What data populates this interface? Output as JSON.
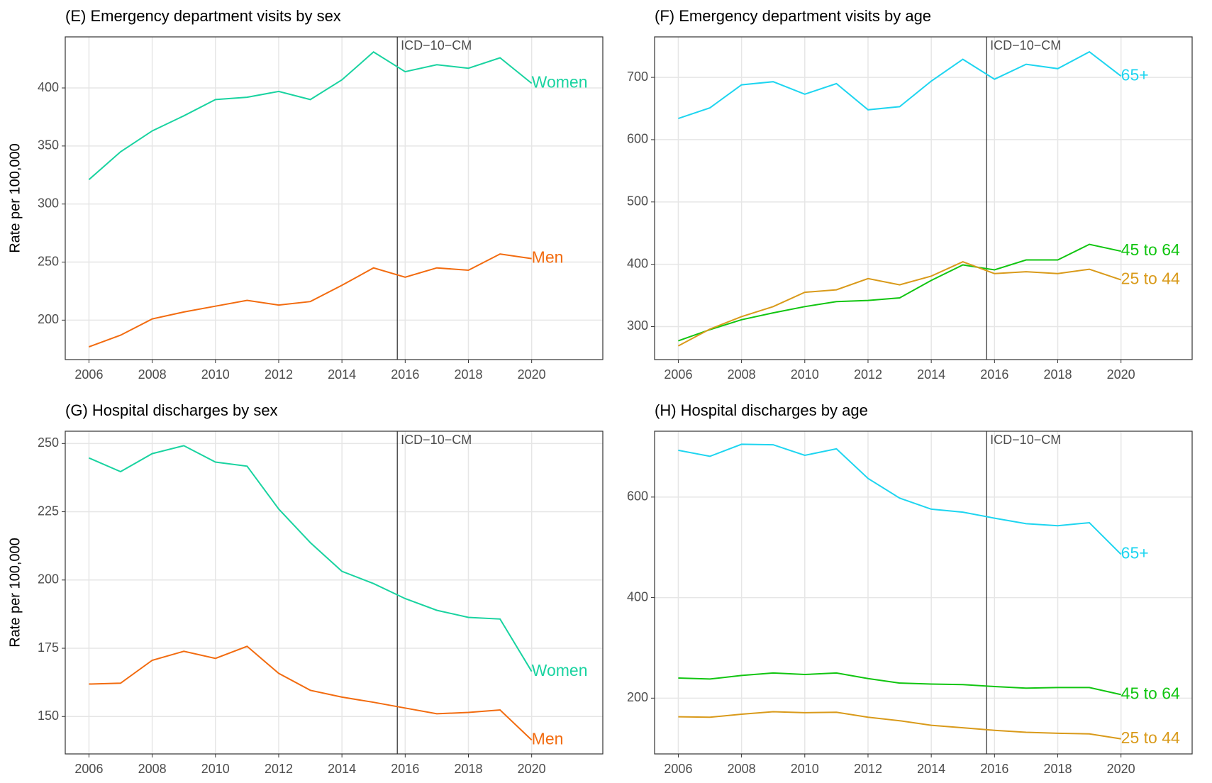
{
  "chart_data": [
    {
      "type": "line",
      "title": "(E) Emergency department visits by sex",
      "y_label": "Rate per 100,000",
      "x": [
        2006,
        2007,
        2008,
        2009,
        2010,
        2011,
        2012,
        2013,
        2014,
        2015,
        2016,
        2017,
        2018,
        2019,
        2020
      ],
      "xlim": [
        2005.25,
        2022.25
      ],
      "xticks": [
        2006,
        2008,
        2010,
        2012,
        2014,
        2016,
        2018,
        2020
      ],
      "ylim": [
        166,
        444
      ],
      "yticks": [
        200,
        250,
        300,
        350,
        400
      ],
      "grid": true,
      "vline": {
        "x": 2015.75,
        "label": "ICD−10−CM"
      },
      "series": [
        {
          "name": "Women",
          "color": "#19d3a0",
          "values": [
            321,
            345,
            363,
            376,
            390,
            392,
            397,
            390,
            407,
            431,
            414,
            420,
            417,
            426,
            404
          ]
        },
        {
          "name": "Men",
          "color": "#f26b0f",
          "values": [
            177,
            187,
            201,
            207,
            212,
            217,
            213,
            216,
            230,
            245,
            237,
            245,
            243,
            257,
            253
          ]
        }
      ]
    },
    {
      "type": "line",
      "title": "(F) Emergency department visits by age",
      "x": [
        2006,
        2007,
        2008,
        2009,
        2010,
        2011,
        2012,
        2013,
        2014,
        2015,
        2016,
        2017,
        2018,
        2019,
        2020
      ],
      "xlim": [
        2005.25,
        2022.25
      ],
      "xticks": [
        2006,
        2008,
        2010,
        2012,
        2014,
        2016,
        2018,
        2020
      ],
      "ylim": [
        247,
        765
      ],
      "yticks": [
        300,
        400,
        500,
        600,
        700
      ],
      "grid": true,
      "vline": {
        "x": 2015.75,
        "label": "ICD−10−CM"
      },
      "series": [
        {
          "name": "65+",
          "color": "#1ed5f0",
          "values": [
            634,
            651,
            688,
            693,
            673,
            690,
            648,
            653,
            694,
            729,
            697,
            721,
            714,
            741,
            702
          ]
        },
        {
          "name": "45 to 64",
          "color": "#11c511",
          "values": [
            277,
            295,
            311,
            322,
            332,
            340,
            342,
            346,
            374,
            399,
            391,
            407,
            407,
            432,
            421
          ]
        },
        {
          "name": "25 to 44",
          "color": "#d99a1a",
          "values": [
            269,
            296,
            316,
            332,
            355,
            359,
            377,
            367,
            381,
            404,
            385,
            388,
            385,
            392,
            375
          ]
        }
      ]
    },
    {
      "type": "line",
      "title": "(G) Hospital discharges by sex",
      "y_label": "Rate per 100,000",
      "x": [
        2006,
        2007,
        2008,
        2009,
        2010,
        2011,
        2012,
        2013,
        2014,
        2015,
        2016,
        2017,
        2018,
        2019,
        2020
      ],
      "xlim": [
        2005.25,
        2022.25
      ],
      "xticks": [
        2006,
        2008,
        2010,
        2012,
        2014,
        2016,
        2018,
        2020
      ],
      "ylim": [
        136.3,
        254.5
      ],
      "yticks": [
        150,
        175,
        200,
        225,
        250
      ],
      "grid": true,
      "vline": {
        "x": 2015.75,
        "label": "ICD−10−CM"
      },
      "series": [
        {
          "name": "Women",
          "color": "#19d3a0",
          "values": [
            244.7,
            239.7,
            246.3,
            249.2,
            243.2,
            241.7,
            226,
            213.7,
            203.2,
            198.7,
            193.2,
            188.9,
            186.3,
            185.7,
            166.5
          ]
        },
        {
          "name": "Men",
          "color": "#f26b0f",
          "values": [
            161.9,
            162.2,
            170.6,
            173.9,
            171.3,
            175.7,
            165.8,
            159.6,
            157.1,
            155.2,
            153.1,
            151,
            151.5,
            152.4,
            141.4
          ]
        }
      ]
    },
    {
      "type": "line",
      "title": "(H) Hospital discharges by age",
      "x": [
        2006,
        2007,
        2008,
        2009,
        2010,
        2011,
        2012,
        2013,
        2014,
        2015,
        2016,
        2017,
        2018,
        2019,
        2020
      ],
      "xlim": [
        2005.25,
        2022.25
      ],
      "xticks": [
        2006,
        2008,
        2010,
        2012,
        2014,
        2016,
        2018,
        2020
      ],
      "ylim": [
        89,
        731
      ],
      "yticks": [
        200,
        400,
        600
      ],
      "grid": true,
      "vline": {
        "x": 2015.75,
        "label": "ICD−10−CM"
      },
      "series": [
        {
          "name": "65+",
          "color": "#1ed5f0",
          "values": [
            693,
            681,
            705,
            704,
            683,
            696,
            637,
            598,
            576,
            570,
            558,
            547,
            543,
            549,
            486
          ]
        },
        {
          "name": "45 to 64",
          "color": "#11c511",
          "values": [
            240,
            238,
            245,
            250,
            247,
            250,
            239,
            230,
            228,
            227,
            223,
            220,
            221,
            221,
            207
          ]
        },
        {
          "name": "25 to 44",
          "color": "#d99a1a",
          "values": [
            163,
            162,
            168,
            173,
            171,
            172,
            162,
            155,
            146,
            141,
            136,
            132,
            130,
            129,
            119
          ]
        }
      ]
    }
  ]
}
